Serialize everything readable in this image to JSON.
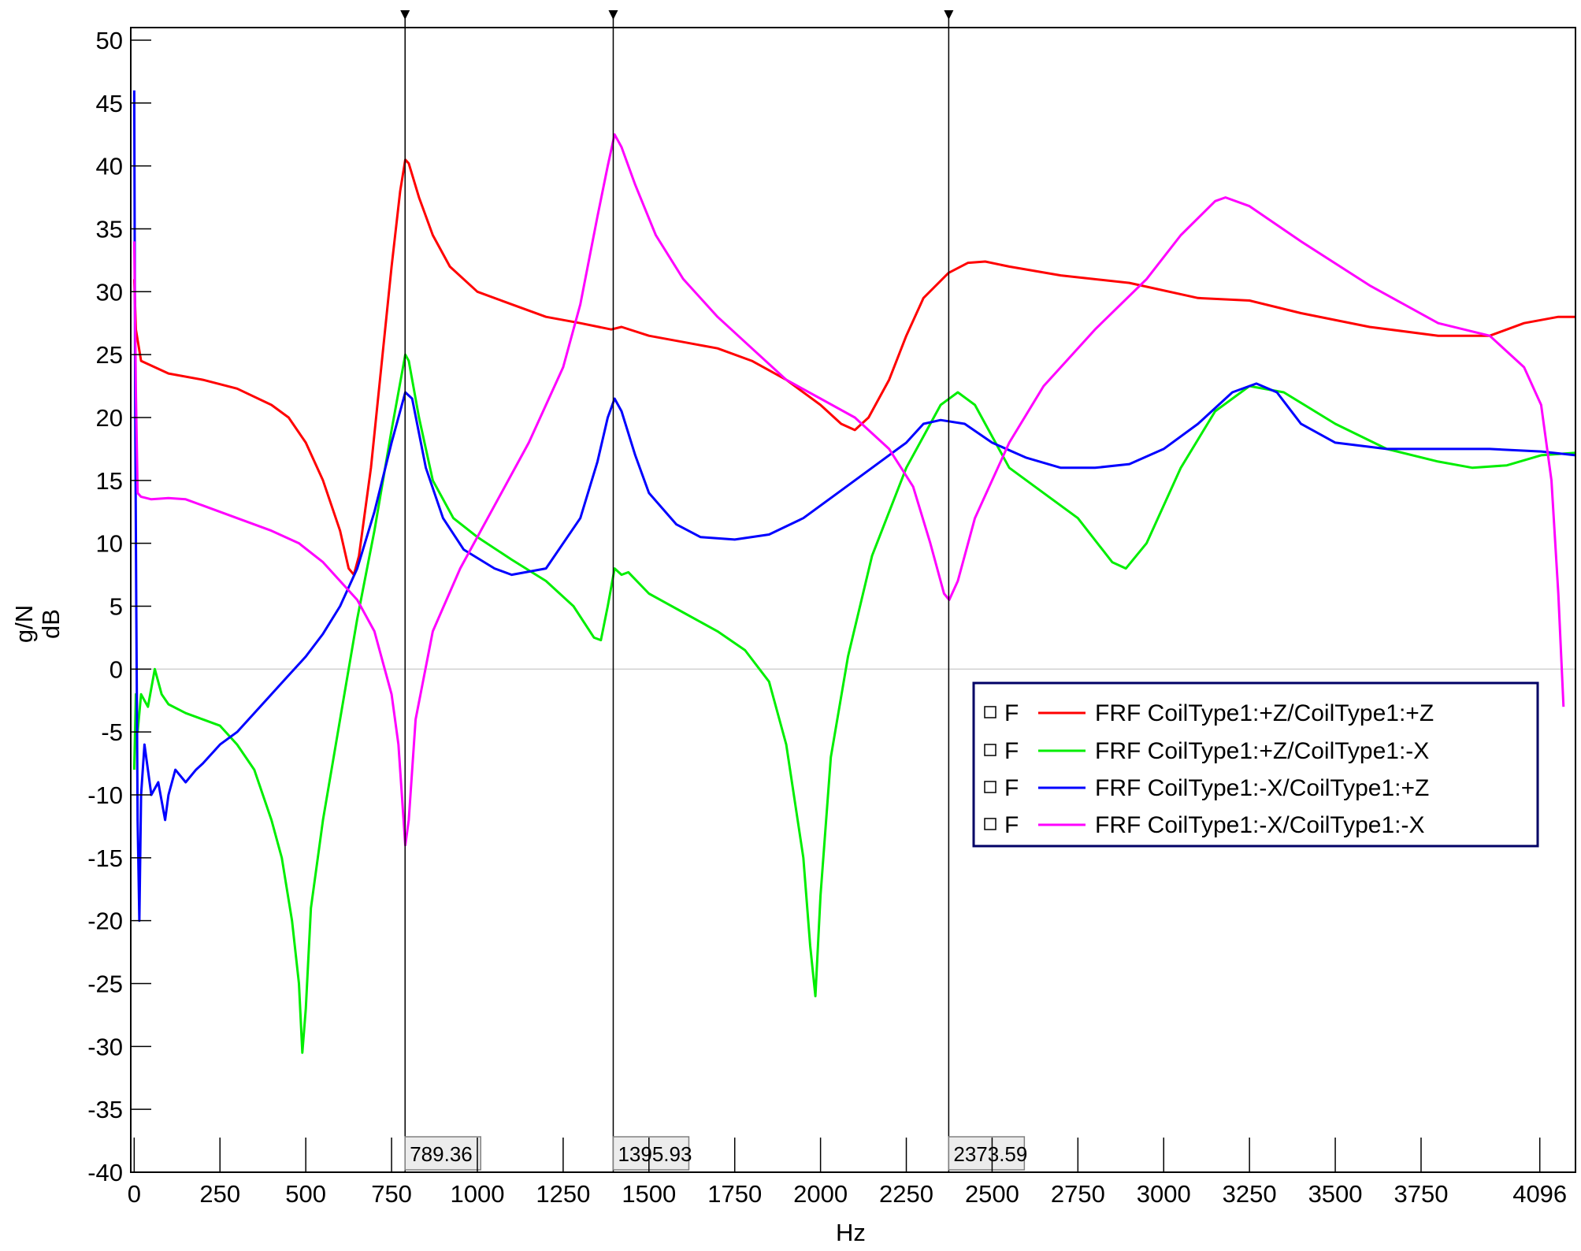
{
  "chart_data": {
    "type": "line",
    "xlabel": "Hz",
    "ylabel_unit": "g/N",
    "ylabel_scale": "dB",
    "xlim": [
      -10,
      4200
    ],
    "ylim": [
      -40,
      51
    ],
    "x_ticks": [
      0,
      250,
      500,
      750,
      1000,
      1250,
      1500,
      1750,
      2000,
      2250,
      2500,
      2750,
      3000,
      3250,
      3500,
      3750,
      4096
    ],
    "y_ticks": [
      50,
      45,
      40,
      35,
      30,
      25,
      20,
      15,
      10,
      5,
      0,
      -5,
      -10,
      -15,
      -20,
      -25,
      -30,
      -35,
      -40
    ],
    "zero_line": true,
    "legend_position": "right",
    "cursors": [
      {
        "x": 789.36,
        "label": "789.36"
      },
      {
        "x": 1395.93,
        "label": "1395.93"
      },
      {
        "x": 2373.59,
        "label": "2373.59"
      }
    ],
    "series": [
      {
        "name": "FRF CoilType1:+Z/CoilType1:+Z",
        "prefix": "F",
        "color": "#ff0000",
        "points": [
          [
            0,
            31
          ],
          [
            5,
            27
          ],
          [
            20,
            24.5
          ],
          [
            100,
            23.5
          ],
          [
            200,
            23
          ],
          [
            300,
            22.3
          ],
          [
            400,
            21
          ],
          [
            450,
            20
          ],
          [
            500,
            18
          ],
          [
            550,
            15
          ],
          [
            600,
            11
          ],
          [
            625,
            8
          ],
          [
            640,
            7.5
          ],
          [
            655,
            9
          ],
          [
            690,
            16
          ],
          [
            720,
            24
          ],
          [
            750,
            32
          ],
          [
            775,
            38
          ],
          [
            790,
            40.5
          ],
          [
            800,
            40.2
          ],
          [
            830,
            37.5
          ],
          [
            870,
            34.5
          ],
          [
            920,
            32
          ],
          [
            1000,
            30
          ],
          [
            1100,
            29
          ],
          [
            1200,
            28
          ],
          [
            1300,
            27.5
          ],
          [
            1390,
            27
          ],
          [
            1420,
            27.2
          ],
          [
            1500,
            26.5
          ],
          [
            1600,
            26
          ],
          [
            1700,
            25.5
          ],
          [
            1800,
            24.5
          ],
          [
            1900,
            23
          ],
          [
            2000,
            21
          ],
          [
            2060,
            19.5
          ],
          [
            2100,
            19
          ],
          [
            2140,
            20
          ],
          [
            2200,
            23
          ],
          [
            2250,
            26.5
          ],
          [
            2300,
            29.5
          ],
          [
            2373,
            31.5
          ],
          [
            2430,
            32.3
          ],
          [
            2480,
            32.4
          ],
          [
            2550,
            32
          ],
          [
            2700,
            31.3
          ],
          [
            2900,
            30.7
          ],
          [
            3100,
            29.5
          ],
          [
            3250,
            29.3
          ],
          [
            3400,
            28.3
          ],
          [
            3600,
            27.2
          ],
          [
            3800,
            26.5
          ],
          [
            3950,
            26.5
          ],
          [
            4050,
            27.5
          ],
          [
            4150,
            28
          ],
          [
            4200,
            28
          ]
        ]
      },
      {
        "name": "FRF CoilType1:+Z/CoilType1:-X",
        "prefix": "F",
        "color": "#00ee00",
        "points": [
          [
            0,
            -8
          ],
          [
            5,
            -2
          ],
          [
            10,
            -5
          ],
          [
            20,
            -2
          ],
          [
            40,
            -3
          ],
          [
            60,
            0
          ],
          [
            80,
            -2
          ],
          [
            100,
            -2.8
          ],
          [
            150,
            -3.5
          ],
          [
            200,
            -4
          ],
          [
            250,
            -4.5
          ],
          [
            300,
            -6
          ],
          [
            350,
            -8
          ],
          [
            400,
            -12
          ],
          [
            430,
            -15
          ],
          [
            460,
            -20
          ],
          [
            480,
            -25
          ],
          [
            490,
            -30.5
          ],
          [
            500,
            -27
          ],
          [
            515,
            -19
          ],
          [
            550,
            -12
          ],
          [
            600,
            -4
          ],
          [
            650,
            4
          ],
          [
            700,
            11
          ],
          [
            750,
            19
          ],
          [
            790,
            25
          ],
          [
            800,
            24.5
          ],
          [
            830,
            20
          ],
          [
            870,
            15
          ],
          [
            930,
            12
          ],
          [
            1000,
            10.5
          ],
          [
            1100,
            8.7
          ],
          [
            1200,
            7
          ],
          [
            1280,
            5
          ],
          [
            1340,
            2.5
          ],
          [
            1360,
            2.3
          ],
          [
            1380,
            5
          ],
          [
            1400,
            8
          ],
          [
            1420,
            7.5
          ],
          [
            1440,
            7.7
          ],
          [
            1500,
            6
          ],
          [
            1600,
            4.5
          ],
          [
            1700,
            3
          ],
          [
            1780,
            1.5
          ],
          [
            1850,
            -1
          ],
          [
            1900,
            -6
          ],
          [
            1950,
            -15
          ],
          [
            1970,
            -22
          ],
          [
            1985,
            -26
          ],
          [
            2000,
            -18
          ],
          [
            2030,
            -7
          ],
          [
            2080,
            1
          ],
          [
            2150,
            9
          ],
          [
            2250,
            16
          ],
          [
            2350,
            21
          ],
          [
            2400,
            22
          ],
          [
            2450,
            21
          ],
          [
            2550,
            16
          ],
          [
            2650,
            14
          ],
          [
            2750,
            12
          ],
          [
            2850,
            8.5
          ],
          [
            2890,
            8
          ],
          [
            2950,
            10
          ],
          [
            3050,
            16
          ],
          [
            3150,
            20.5
          ],
          [
            3250,
            22.5
          ],
          [
            3350,
            22
          ],
          [
            3500,
            19.5
          ],
          [
            3650,
            17.5
          ],
          [
            3800,
            16.5
          ],
          [
            3900,
            16
          ],
          [
            4000,
            16.2
          ],
          [
            4100,
            17
          ],
          [
            4200,
            17.2
          ]
        ]
      },
      {
        "name": "FRF CoilType1:-X/CoilType1:+Z",
        "prefix": "F",
        "color": "#0000ff",
        "points": [
          [
            0,
            46
          ],
          [
            3,
            20
          ],
          [
            6,
            5
          ],
          [
            10,
            -12
          ],
          [
            15,
            -20
          ],
          [
            20,
            -10
          ],
          [
            30,
            -6
          ],
          [
            50,
            -10
          ],
          [
            70,
            -9
          ],
          [
            90,
            -12
          ],
          [
            100,
            -10
          ],
          [
            120,
            -8
          ],
          [
            150,
            -9
          ],
          [
            180,
            -8
          ],
          [
            200,
            -7.5
          ],
          [
            250,
            -6
          ],
          [
            300,
            -5
          ],
          [
            350,
            -3.5
          ],
          [
            400,
            -2
          ],
          [
            450,
            -0.5
          ],
          [
            500,
            1
          ],
          [
            550,
            2.8
          ],
          [
            600,
            5
          ],
          [
            650,
            8
          ],
          [
            700,
            12.5
          ],
          [
            750,
            18
          ],
          [
            790,
            22
          ],
          [
            810,
            21.5
          ],
          [
            850,
            16
          ],
          [
            900,
            12
          ],
          [
            960,
            9.5
          ],
          [
            1050,
            8
          ],
          [
            1100,
            7.5
          ],
          [
            1200,
            8
          ],
          [
            1300,
            12
          ],
          [
            1350,
            16.5
          ],
          [
            1380,
            20
          ],
          [
            1400,
            21.5
          ],
          [
            1420,
            20.5
          ],
          [
            1460,
            17
          ],
          [
            1500,
            14
          ],
          [
            1580,
            11.5
          ],
          [
            1650,
            10.5
          ],
          [
            1750,
            10.3
          ],
          [
            1850,
            10.7
          ],
          [
            1950,
            12
          ],
          [
            2050,
            14
          ],
          [
            2150,
            16
          ],
          [
            2250,
            18
          ],
          [
            2300,
            19.5
          ],
          [
            2350,
            19.8
          ],
          [
            2420,
            19.5
          ],
          [
            2500,
            18
          ],
          [
            2600,
            16.8
          ],
          [
            2700,
            16
          ],
          [
            2800,
            16
          ],
          [
            2900,
            16.3
          ],
          [
            3000,
            17.5
          ],
          [
            3100,
            19.5
          ],
          [
            3200,
            22
          ],
          [
            3270,
            22.7
          ],
          [
            3330,
            22
          ],
          [
            3400,
            19.5
          ],
          [
            3500,
            18
          ],
          [
            3650,
            17.5
          ],
          [
            3800,
            17.5
          ],
          [
            3950,
            17.5
          ],
          [
            4100,
            17.3
          ],
          [
            4200,
            17
          ]
        ]
      },
      {
        "name": "FRF CoilType1:-X/CoilType1:-X",
        "prefix": "F",
        "color": "#ff00ff",
        "points": [
          [
            0,
            34
          ],
          [
            5,
            22
          ],
          [
            10,
            14
          ],
          [
            20,
            13.7
          ],
          [
            50,
            13.5
          ],
          [
            100,
            13.6
          ],
          [
            150,
            13.5
          ],
          [
            200,
            13
          ],
          [
            300,
            12
          ],
          [
            400,
            11
          ],
          [
            480,
            10
          ],
          [
            550,
            8.5
          ],
          [
            600,
            7
          ],
          [
            650,
            5.5
          ],
          [
            700,
            3
          ],
          [
            750,
            -2
          ],
          [
            770,
            -6
          ],
          [
            785,
            -12
          ],
          [
            790,
            -14
          ],
          [
            800,
            -12
          ],
          [
            820,
            -4
          ],
          [
            870,
            3
          ],
          [
            950,
            8
          ],
          [
            1050,
            13
          ],
          [
            1150,
            18
          ],
          [
            1250,
            24
          ],
          [
            1300,
            29
          ],
          [
            1350,
            36
          ],
          [
            1380,
            40
          ],
          [
            1400,
            42.5
          ],
          [
            1420,
            41.5
          ],
          [
            1460,
            38.5
          ],
          [
            1520,
            34.5
          ],
          [
            1600,
            31
          ],
          [
            1700,
            28
          ],
          [
            1800,
            25.5
          ],
          [
            1900,
            23
          ],
          [
            2000,
            21.5
          ],
          [
            2100,
            20
          ],
          [
            2200,
            17.5
          ],
          [
            2270,
            14.5
          ],
          [
            2320,
            10
          ],
          [
            2360,
            6
          ],
          [
            2375,
            5.5
          ],
          [
            2400,
            7
          ],
          [
            2450,
            12
          ],
          [
            2550,
            18
          ],
          [
            2650,
            22.5
          ],
          [
            2800,
            27
          ],
          [
            2950,
            31
          ],
          [
            3050,
            34.5
          ],
          [
            3150,
            37.2
          ],
          [
            3180,
            37.5
          ],
          [
            3250,
            36.8
          ],
          [
            3400,
            34
          ],
          [
            3600,
            30.5
          ],
          [
            3800,
            27.5
          ],
          [
            3950,
            26.5
          ],
          [
            4050,
            24
          ],
          [
            4100,
            21
          ],
          [
            4130,
            15
          ],
          [
            4150,
            6
          ],
          [
            4165,
            -3
          ]
        ]
      }
    ]
  }
}
